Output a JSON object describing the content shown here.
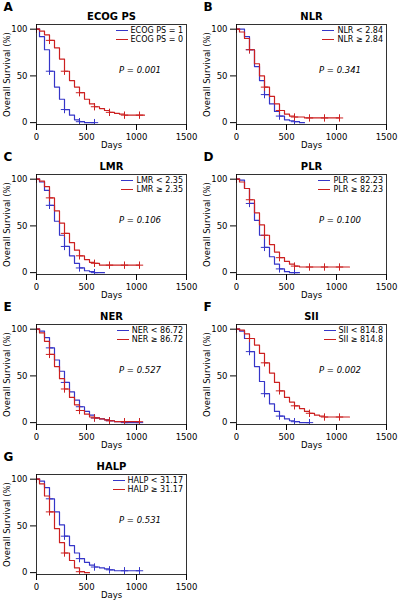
{
  "chart_data": [
    {
      "type": "line",
      "title": "ECOG PS",
      "annotations": [
        "A",
        "P = 0.001"
      ],
      "xlabel": "Days",
      "ylabel": "Overall Survival (%)",
      "xlim": [
        0,
        1500
      ],
      "xticks": [
        0,
        500,
        1000,
        1500
      ],
      "ylim": [
        -2,
        105
      ],
      "yticks": [
        0,
        50,
        100
      ],
      "grid": false,
      "legend": "upper right",
      "series": [
        {
          "name": "ECOG PS = 1",
          "color": "#3535c8",
          "type": "step",
          "marker": "plus",
          "x": [
            0,
            30,
            80,
            130,
            180,
            230,
            280,
            330,
            380,
            430,
            480,
            530,
            580
          ],
          "values": [
            100,
            92,
            78,
            55,
            38,
            25,
            14,
            8,
            3,
            1,
            0,
            0,
            0
          ]
        },
        {
          "name": "ECOG PS = 0",
          "color": "#cc2020",
          "type": "step",
          "marker": "plus",
          "x": [
            0,
            30,
            80,
            130,
            180,
            230,
            280,
            330,
            380,
            430,
            480,
            530,
            580,
            630,
            680,
            730,
            780,
            830,
            880,
            930,
            980,
            1030,
            1080
          ],
          "values": [
            100,
            98,
            94,
            88,
            80,
            68,
            55,
            45,
            38,
            32,
            25,
            20,
            17,
            15,
            13,
            11,
            10,
            9,
            8,
            8,
            8,
            8,
            8
          ]
        }
      ]
    },
    {
      "type": "line",
      "title": "NLR",
      "annotations": [
        "B",
        "P = 0.341"
      ],
      "xlabel": "Days",
      "ylabel": "Overall Survival (%)",
      "xlim": [
        0,
        1500
      ],
      "xticks": [
        0,
        500,
        1000,
        1500
      ],
      "ylim": [
        -2,
        105
      ],
      "yticks": [
        0,
        50,
        100
      ],
      "grid": false,
      "legend": "upper right",
      "series": [
        {
          "name": "NLR < 2.84",
          "color": "#3535c8",
          "type": "step",
          "marker": "plus",
          "x": [
            0,
            30,
            80,
            130,
            180,
            230,
            280,
            330,
            380,
            430,
            480,
            530,
            580,
            630,
            680
          ],
          "values": [
            100,
            100,
            92,
            78,
            60,
            45,
            30,
            20,
            12,
            7,
            3,
            2,
            1,
            0,
            0
          ]
        },
        {
          "name": "NLR ≥ 2.84",
          "color": "#cc2020",
          "type": "step",
          "marker": "plus",
          "x": [
            0,
            30,
            80,
            130,
            180,
            230,
            280,
            330,
            380,
            430,
            480,
            530,
            580,
            630,
            680,
            730,
            780,
            830,
            880,
            930,
            980,
            1030
          ],
          "values": [
            100,
            97,
            90,
            78,
            63,
            50,
            38,
            28,
            20,
            13,
            9,
            7,
            6,
            6,
            5,
            5,
            5,
            5,
            5,
            5,
            5,
            5
          ]
        }
      ]
    },
    {
      "type": "line",
      "title": "LMR",
      "annotations": [
        "C",
        "P = 0.106"
      ],
      "xlabel": "Days",
      "ylabel": "Overall Survival (%)",
      "xlim": [
        0,
        1500
      ],
      "xticks": [
        0,
        500,
        1000,
        1500
      ],
      "ylim": [
        -2,
        105
      ],
      "yticks": [
        0,
        50,
        100
      ],
      "grid": false,
      "legend": "upper right",
      "series": [
        {
          "name": "LMR < 2.35",
          "color": "#3535c8",
          "type": "step",
          "marker": "plus",
          "x": [
            0,
            30,
            80,
            130,
            180,
            230,
            280,
            330,
            380,
            430,
            480,
            530,
            580,
            630,
            680
          ],
          "values": [
            100,
            97,
            88,
            72,
            55,
            40,
            28,
            18,
            10,
            5,
            2,
            1,
            0,
            0,
            0
          ]
        },
        {
          "name": "LMR ≥ 2.35",
          "color": "#cc2020",
          "type": "step",
          "marker": "plus",
          "x": [
            0,
            30,
            80,
            130,
            180,
            230,
            280,
            330,
            380,
            430,
            480,
            530,
            580,
            630,
            680,
            730,
            780,
            830,
            880,
            930,
            980,
            1030
          ],
          "values": [
            100,
            98,
            92,
            80,
            66,
            53,
            42,
            32,
            24,
            18,
            14,
            11,
            10,
            8,
            8,
            8,
            8,
            8,
            8,
            8,
            8,
            8
          ]
        }
      ]
    },
    {
      "type": "line",
      "title": "PLR",
      "annotations": [
        "D",
        "P = 0.100"
      ],
      "xlabel": "Days",
      "ylabel": "Overall Survival (%)",
      "xlim": [
        0,
        1500
      ],
      "xticks": [
        0,
        500,
        1000,
        1500
      ],
      "ylim": [
        -2,
        105
      ],
      "yticks": [
        0,
        50,
        100
      ],
      "grid": false,
      "legend": "upper right",
      "series": [
        {
          "name": "PLR < 82.23",
          "color": "#3535c8",
          "type": "step",
          "marker": "plus",
          "x": [
            0,
            30,
            80,
            130,
            180,
            230,
            280,
            330,
            380,
            430,
            480,
            530,
            580,
            630
          ],
          "values": [
            100,
            99,
            90,
            74,
            56,
            40,
            27,
            17,
            9,
            4,
            1,
            0,
            0,
            0
          ]
        },
        {
          "name": "PLR ≥ 82.23",
          "color": "#cc2020",
          "type": "step",
          "marker": "plus",
          "x": [
            0,
            30,
            80,
            130,
            180,
            230,
            280,
            330,
            380,
            430,
            480,
            530,
            580,
            630,
            680,
            730,
            780,
            830,
            880,
            930,
            980,
            1030,
            1080,
            1130
          ],
          "values": [
            100,
            97,
            90,
            78,
            64,
            51,
            40,
            30,
            22,
            16,
            12,
            9,
            7,
            6,
            6,
            6,
            6,
            6,
            6,
            6,
            6,
            6,
            6,
            6
          ]
        }
      ]
    },
    {
      "type": "line",
      "title": "NER",
      "annotations": [
        "E",
        "P = 0.527"
      ],
      "xlabel": "Days",
      "ylabel": "Overall Survival (%)",
      "xlim": [
        0,
        1500
      ],
      "xticks": [
        0,
        500,
        1000,
        1500
      ],
      "ylim": [
        -2,
        105
      ],
      "yticks": [
        0,
        50,
        100
      ],
      "grid": false,
      "legend": "upper right",
      "series": [
        {
          "name": "NER < 86.72",
          "color": "#3535c8",
          "type": "step",
          "marker": "plus",
          "x": [
            0,
            30,
            80,
            130,
            180,
            230,
            280,
            330,
            380,
            430,
            480,
            530,
            580,
            630,
            680,
            730,
            780,
            830,
            880,
            930,
            980,
            1030
          ],
          "values": [
            100,
            98,
            91,
            80,
            67,
            55,
            43,
            33,
            24,
            17,
            12,
            8,
            5,
            4,
            3,
            2,
            1,
            1,
            0,
            0,
            0,
            0
          ]
        },
        {
          "name": "NER ≥ 86.72",
          "color": "#cc2020",
          "type": "step",
          "marker": "plus",
          "x": [
            0,
            30,
            80,
            130,
            180,
            230,
            280,
            330,
            380,
            430,
            480,
            530,
            580,
            630,
            680,
            730,
            780,
            830,
            880,
            930,
            980,
            1030
          ],
          "values": [
            100,
            96,
            87,
            73,
            60,
            47,
            36,
            27,
            19,
            13,
            9,
            6,
            5,
            4,
            3,
            2,
            1,
            1,
            1,
            1,
            1,
            1
          ]
        }
      ]
    },
    {
      "type": "line",
      "title": "SII",
      "annotations": [
        "F",
        "P = 0.002"
      ],
      "xlabel": "Days",
      "ylabel": "Overall Survival (%)",
      "xlim": [
        0,
        1500
      ],
      "xticks": [
        0,
        500,
        1000,
        1500
      ],
      "ylim": [
        -2,
        105
      ],
      "yticks": [
        0,
        50,
        100
      ],
      "grid": false,
      "legend": "upper right",
      "series": [
        {
          "name": "SII < 814.8",
          "color": "#3535c8",
          "type": "step",
          "marker": "plus",
          "x": [
            0,
            30,
            80,
            130,
            180,
            230,
            280,
            330,
            380,
            430,
            480,
            530,
            580,
            630,
            680,
            730
          ],
          "values": [
            100,
            98,
            90,
            76,
            60,
            44,
            31,
            20,
            12,
            7,
            4,
            2,
            1,
            0,
            0,
            0
          ]
        },
        {
          "name": "SII ≥ 814.8",
          "color": "#cc2020",
          "type": "step",
          "marker": "plus",
          "x": [
            0,
            30,
            80,
            130,
            180,
            230,
            280,
            330,
            380,
            430,
            480,
            530,
            580,
            630,
            680,
            730,
            780,
            830,
            880,
            930,
            980,
            1030,
            1080,
            1130
          ],
          "values": [
            100,
            99,
            95,
            90,
            83,
            74,
            64,
            53,
            43,
            34,
            27,
            22,
            18,
            15,
            12,
            10,
            8,
            7,
            6,
            6,
            6,
            6,
            6,
            6
          ]
        }
      ]
    },
    {
      "type": "line",
      "title": "HALP",
      "annotations": [
        "G",
        "P = 0.531"
      ],
      "xlabel": "Days",
      "ylabel": "Overall Survival (%)",
      "xlim": [
        0,
        1500
      ],
      "xticks": [
        0,
        500,
        1000,
        1500
      ],
      "ylim": [
        -2,
        105
      ],
      "yticks": [
        0,
        50,
        100
      ],
      "grid": false,
      "legend": "upper right",
      "series": [
        {
          "name": "HALP < 31.17",
          "color": "#3535c8",
          "type": "step",
          "marker": "plus",
          "x": [
            0,
            30,
            80,
            130,
            180,
            230,
            280,
            330,
            380,
            430,
            480,
            530,
            580,
            630,
            680,
            730,
            780,
            830,
            880,
            930,
            980,
            1030
          ],
          "values": [
            100,
            98,
            91,
            79,
            65,
            51,
            39,
            29,
            21,
            15,
            11,
            8,
            6,
            5,
            4,
            3,
            2,
            2,
            2,
            2,
            2,
            2
          ]
        },
        {
          "name": "HALP ≥ 31.17",
          "color": "#cc2020",
          "type": "step",
          "marker": "plus",
          "x": [
            0,
            30,
            80,
            130,
            180,
            230,
            280,
            330,
            380,
            430,
            480,
            530
          ],
          "values": [
            100,
            95,
            82,
            65,
            47,
            32,
            21,
            13,
            5,
            1,
            0,
            0
          ]
        }
      ]
    }
  ]
}
